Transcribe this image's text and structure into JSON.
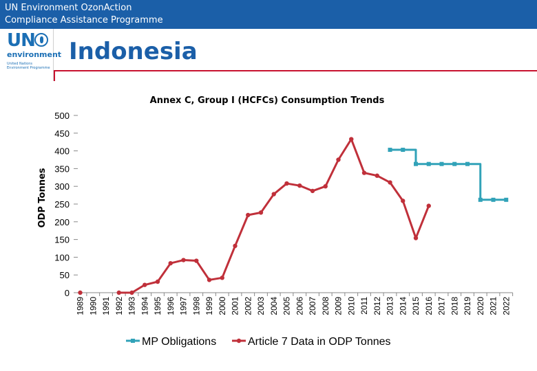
{
  "header": {
    "line1": "UN Environment OzonAction",
    "line2": "Compliance Assistance Programme"
  },
  "logo": {
    "un": "UN",
    "environment": "environment",
    "subtitle": "United Nations Environment Programme"
  },
  "page_title": "Indonesia",
  "colors": {
    "header_bar": "#1b5fa8",
    "accent_red": "#c8102e",
    "mp_series": "#31a2b8",
    "art7_series": "#c0303a"
  },
  "chart_data": {
    "type": "line",
    "title": "Annex C, Group I (HCFCs) Consumption Trends",
    "xlabel": "",
    "ylabel": "ODP Tonnes",
    "ylim": [
      0,
      500
    ],
    "yticks": [
      0,
      50,
      100,
      150,
      200,
      250,
      300,
      350,
      400,
      450,
      500
    ],
    "grid": false,
    "legend": "bottom",
    "categories": [
      "1989",
      "1990",
      "1991",
      "1992",
      "1993",
      "1994",
      "1995",
      "1996",
      "1997",
      "1998",
      "1999",
      "2000",
      "2001",
      "2002",
      "2003",
      "2004",
      "2005",
      "2006",
      "2007",
      "2008",
      "2009",
      "2010",
      "2011",
      "2012",
      "2013",
      "2014",
      "2015",
      "2016",
      "2017",
      "2018",
      "2019",
      "2020",
      "2021",
      "2022"
    ],
    "series": [
      {
        "name": "MP Obligations",
        "step": true,
        "values": [
          null,
          null,
          null,
          null,
          null,
          null,
          null,
          null,
          null,
          null,
          null,
          null,
          null,
          null,
          null,
          null,
          null,
          null,
          null,
          null,
          null,
          null,
          null,
          null,
          403,
          403,
          363,
          363,
          363,
          363,
          363,
          262,
          262,
          262
        ]
      },
      {
        "name": "Article 7 Data in ODP Tonnes",
        "step": false,
        "values": [
          0,
          null,
          null,
          0,
          0,
          22,
          31,
          83,
          92,
          90,
          36,
          42,
          132,
          219,
          226,
          278,
          308,
          302,
          287,
          300,
          375,
          433,
          338,
          330,
          311,
          259,
          154,
          245,
          null,
          null,
          null,
          null,
          null,
          null
        ]
      }
    ]
  }
}
